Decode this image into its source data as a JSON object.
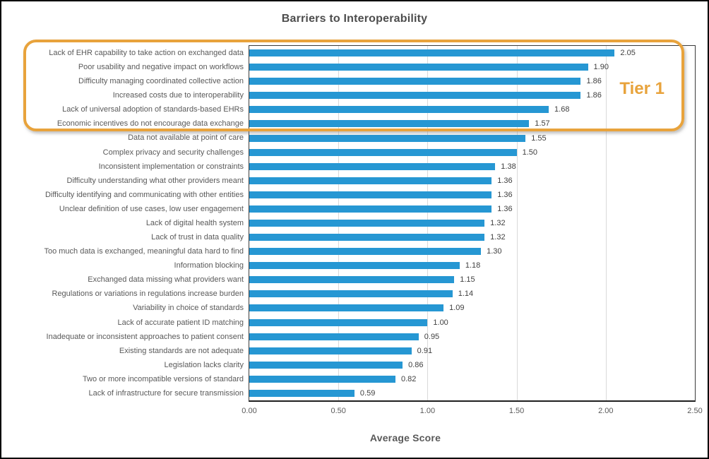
{
  "annotation": {
    "label": "Tier 1",
    "color": "#E8A33C",
    "rows_included": 6
  },
  "chart_data": {
    "type": "bar",
    "orientation": "horizontal",
    "title": "Barriers to Interoperability",
    "xlabel": "Average Score",
    "ylabel": "",
    "xlim": [
      0,
      2.5
    ],
    "xticks": [
      0.0,
      0.5,
      1.0,
      1.5,
      2.0,
      2.5
    ],
    "xtick_labels": [
      "0.00",
      "0.50",
      "1.00",
      "1.50",
      "2.00",
      "2.50"
    ],
    "grid": true,
    "legend": false,
    "bar_color": "#2697D3",
    "categories": [
      "Lack of EHR capability to take action on exchanged data",
      "Poor usability and negative impact on workflows",
      "Difficulty managing coordinated collective action",
      "Increased costs due to interoperability",
      "Lack of universal adoption of standards-based EHRs",
      "Economic incentives do not encourage data exchange",
      "Data not available at point of care",
      "Complex privacy and security challenges",
      "Inconsistent implementation or constraints",
      "Difficulty understanding what other providers meant",
      "Difficulty identifying and communicating with other entities",
      "Unclear definition of use cases, low user engagement",
      "Lack of digital health system",
      "Lack of trust in data quality",
      "Too much data is exchanged, meaningful data hard to find",
      "Information blocking",
      "Exchanged data missing what providers want",
      "Regulations or variations in regulations increase burden",
      "Variability in choice of standards",
      "Lack of accurate patient ID matching",
      "Inadequate or inconsistent approaches to patient consent",
      "Existing standards are not adequate",
      "Legislation lacks clarity",
      "Two or more incompatible versions of standard",
      "Lack of infrastructure for secure transmission"
    ],
    "values": [
      2.05,
      1.9,
      1.86,
      1.86,
      1.68,
      1.57,
      1.55,
      1.5,
      1.38,
      1.36,
      1.36,
      1.36,
      1.32,
      1.32,
      1.3,
      1.18,
      1.15,
      1.14,
      1.09,
      1.0,
      0.95,
      0.91,
      0.86,
      0.82,
      0.59
    ]
  }
}
